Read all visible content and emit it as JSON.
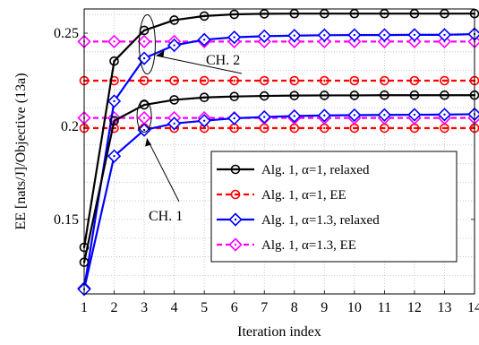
{
  "chart_data": {
    "type": "line",
    "xlabel": "Iteration index",
    "ylabel": "EE [nats/J]/Objective (13a)",
    "xlim": [
      1,
      14
    ],
    "ylim": [
      0.11,
      0.263
    ],
    "x": [
      1,
      2,
      3,
      4,
      5,
      6,
      7,
      8,
      9,
      10,
      11,
      12,
      13,
      14
    ],
    "xticks": [
      "1",
      "2",
      "3",
      "4",
      "5",
      "6",
      "7",
      "8",
      "9",
      "10",
      "11",
      "12",
      "13",
      "14"
    ],
    "yticks": [
      {
        "value": 0.15,
        "label": "0.15"
      },
      {
        "value": 0.2,
        "label": "0.2"
      },
      {
        "value": 0.25,
        "label": "0.25"
      }
    ],
    "grid": true,
    "legend_position": "center-right",
    "series": [
      {
        "name": "Alg. 1, α=1, relaxed",
        "color": "#000000",
        "marker": "circle",
        "dashed": false,
        "channels": [
          {
            "channel": "CH. 2",
            "values": [
              0.135,
              0.235,
              0.2515,
              0.257,
              0.2592,
              0.2601,
              0.2604,
              0.2605,
              0.2605,
              0.2605,
              0.2605,
              0.2605,
              0.2605,
              0.2605
            ]
          },
          {
            "channel": "CH. 1",
            "values": [
              0.127,
              0.203,
              0.2115,
              0.2142,
              0.2155,
              0.216,
              0.2163,
              0.2165,
              0.2166,
              0.2166,
              0.2167,
              0.2167,
              0.2167,
              0.2167
            ]
          }
        ]
      },
      {
        "name": "Alg. 1, α=1, EE",
        "color": "#ff0000",
        "marker": "circle",
        "dashed": true,
        "channels": [
          {
            "channel": "CH. 2",
            "values": [
              0.2245,
              0.2245,
              0.2245,
              0.2245,
              0.2245,
              0.2245,
              0.2245,
              0.2245,
              0.2245,
              0.2245,
              0.2245,
              0.2245,
              0.2245,
              0.2245
            ]
          },
          {
            "channel": "CH. 1",
            "values": [
              0.199,
              0.199,
              0.199,
              0.199,
              0.199,
              0.199,
              0.199,
              0.199,
              0.199,
              0.199,
              0.199,
              0.199,
              0.199,
              0.199
            ]
          }
        ]
      },
      {
        "name": "Alg. 1, α=1.3, relaxed",
        "color": "#0000ff",
        "marker": "diamond",
        "dashed": false,
        "channels": [
          {
            "channel": "CH. 2",
            "values": [
              0.113,
              0.2135,
              0.2365,
              0.2435,
              0.2465,
              0.2478,
              0.2484,
              0.2487,
              0.2489,
              0.249,
              0.249,
              0.2491,
              0.2491,
              0.2495
            ]
          },
          {
            "channel": "CH. 1",
            "values": [
              0.1125,
              0.184,
              0.198,
              0.2015,
              0.203,
              0.2043,
              0.205,
              0.2055,
              0.2058,
              0.206,
              0.2061,
              0.2062,
              0.2063,
              0.2065
            ]
          }
        ]
      },
      {
        "name": "Alg. 1, α=1.3, EE",
        "color": "#ff00ff",
        "marker": "diamond",
        "dashed": true,
        "channels": [
          {
            "channel": "CH. 2",
            "values": [
              0.2455,
              0.2455,
              0.2455,
              0.2455,
              0.2455,
              0.2455,
              0.2455,
              0.2455,
              0.2455,
              0.2455,
              0.2455,
              0.2455,
              0.2455,
              0.2455
            ]
          },
          {
            "channel": "CH. 1",
            "values": [
              0.2045,
              0.2045,
              0.2045,
              0.2045,
              0.2045,
              0.2045,
              0.2045,
              0.2045,
              0.2045,
              0.2045,
              0.2045,
              0.2045,
              0.2045,
              0.2045
            ]
          }
        ]
      }
    ],
    "annotations": [
      {
        "text": "CH. 2",
        "target_x": 3.1,
        "target_y": 0.244
      },
      {
        "text": "CH. 1",
        "target_x": 3.0,
        "target_y": 0.2045
      }
    ]
  }
}
